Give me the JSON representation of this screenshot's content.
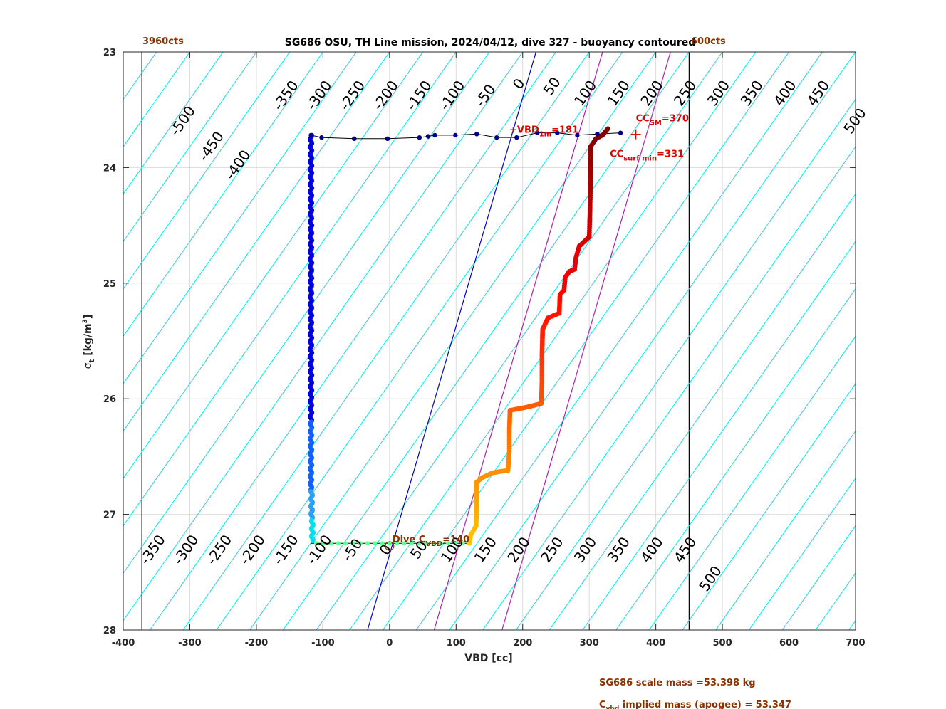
{
  "chart_data": {
    "type": "scatter",
    "title": "SG686 OSU, TH Line mission, 2024/04/12, dive 327 - buoyancy contoured",
    "xlabel": "VBD [cc]",
    "ylabel_main": "σ",
    "ylabel_sub": "t",
    "ylabel_unit": " [kg/m",
    "ylabel_exp": "3",
    "ylabel_close": "]",
    "xlim": [
      -400,
      700
    ],
    "ylim": [
      28,
      23
    ],
    "grid": true,
    "x_ticks": [
      -400,
      -300,
      -200,
      -100,
      0,
      100,
      200,
      300,
      400,
      500,
      600,
      700
    ],
    "y_ticks": [
      23,
      24,
      25,
      26,
      27,
      28
    ],
    "vbd_limits": {
      "min": -372,
      "max": 450,
      "min_label": "3960cts",
      "max_label": "600cts"
    },
    "contours": {
      "values": [
        -500,
        -450,
        -400,
        -350,
        -300,
        -250,
        -200,
        -150,
        -100,
        -50,
        0,
        50,
        100,
        150,
        200,
        250,
        300,
        350,
        400,
        450,
        500
      ],
      "slope_cc_per_sigma": -122,
      "top_labels": [
        {
          "label": "-500",
          "x": -305,
          "y": 23.62
        },
        {
          "label": "-450",
          "x": -262,
          "y": 23.84
        },
        {
          "label": "-400",
          "x": -222,
          "y": 24.0
        },
        {
          "label": "-350",
          "x": -150,
          "y": 23.4
        },
        {
          "label": "-300",
          "x": -100,
          "y": 23.4
        },
        {
          "label": "-250",
          "x": -50,
          "y": 23.4
        },
        {
          "label": "-200",
          "x": 0,
          "y": 23.4
        },
        {
          "label": "-150",
          "x": 50,
          "y": 23.4
        },
        {
          "label": "-100",
          "x": 100,
          "y": 23.4
        },
        {
          "label": "-50",
          "x": 150,
          "y": 23.4
        },
        {
          "label": "0",
          "x": 200,
          "y": 23.3
        },
        {
          "label": "50",
          "x": 250,
          "y": 23.32
        },
        {
          "label": "100",
          "x": 300,
          "y": 23.38
        },
        {
          "label": "150",
          "x": 350,
          "y": 23.38
        },
        {
          "label": "200",
          "x": 400,
          "y": 23.38
        },
        {
          "label": "250",
          "x": 450,
          "y": 23.38
        },
        {
          "label": "300",
          "x": 500,
          "y": 23.38
        },
        {
          "label": "350",
          "x": 550,
          "y": 23.38
        },
        {
          "label": "400",
          "x": 600,
          "y": 23.38
        },
        {
          "label": "450",
          "x": 650,
          "y": 23.38
        },
        {
          "label": "500",
          "x": 705,
          "y": 23.62
        }
      ],
      "bottom_labels": [
        {
          "label": "-350",
          "x": -350,
          "y": 27.33
        },
        {
          "label": "-300",
          "x": -300,
          "y": 27.33
        },
        {
          "label": "-250",
          "x": -250,
          "y": 27.33
        },
        {
          "label": "-200",
          "x": -200,
          "y": 27.33
        },
        {
          "label": "-150",
          "x": -150,
          "y": 27.33
        },
        {
          "label": "-100",
          "x": -100,
          "y": 27.33
        },
        {
          "label": "-50",
          "x": -50,
          "y": 27.33
        },
        {
          "label": "0",
          "x": 0,
          "y": 27.33
        },
        {
          "label": "50",
          "x": 50,
          "y": 27.33
        },
        {
          "label": "100",
          "x": 100,
          "y": 27.33
        },
        {
          "label": "150",
          "x": 150,
          "y": 27.33
        },
        {
          "label": "200",
          "x": 200,
          "y": 27.33
        },
        {
          "label": "250",
          "x": 250,
          "y": 27.33
        },
        {
          "label": "300",
          "x": 300,
          "y": 27.33
        },
        {
          "label": "350",
          "x": 350,
          "y": 27.33
        },
        {
          "label": "400",
          "x": 400,
          "y": 27.33
        },
        {
          "label": "450",
          "x": 450,
          "y": 27.33
        },
        {
          "label": "500",
          "x": 488,
          "y": 27.58
        }
      ]
    },
    "reference_lines": [
      {
        "name": "vbd-ref-blue",
        "color": "#0000c8",
        "x_at_23": 220,
        "x_at_28": -33
      },
      {
        "name": "mass-ref-magenta-1",
        "color": "#b41eb4",
        "x_at_23": 320,
        "x_at_28": 67
      },
      {
        "name": "mass-ref-magenta-2",
        "color": "#b41eb4",
        "x_at_23": 422,
        "x_at_28": 169
      }
    ],
    "descent_segments": [
      {
        "x": -118,
        "y0": 23.72,
        "y1": 26.2,
        "color": "#0000dc"
      },
      {
        "x": -118,
        "y0": 26.2,
        "y1": 26.8,
        "color": "#1460ff"
      },
      {
        "x": -117,
        "y0": 26.8,
        "y1": 27.05,
        "color": "#28a0ff"
      },
      {
        "x": -116,
        "y0": 27.05,
        "y1": 27.24,
        "color": "#00e0f0"
      }
    ],
    "apogee_points": {
      "y": 27.25,
      "x_from": -110,
      "x_to": 120,
      "step": 11,
      "color": "#60ff90"
    },
    "ascent_path": [
      [
        120,
        27.25
      ],
      [
        122,
        27.18
      ],
      [
        130,
        27.1
      ],
      [
        131,
        26.95
      ],
      [
        131,
        26.8
      ],
      [
        131,
        26.72
      ],
      [
        140,
        26.68
      ],
      [
        155,
        26.64
      ],
      [
        165,
        26.63
      ],
      [
        178,
        26.62
      ],
      [
        180,
        26.45
      ],
      [
        180,
        26.27
      ],
      [
        181,
        26.1
      ],
      [
        200,
        26.08
      ],
      [
        215,
        26.06
      ],
      [
        228,
        26.04
      ],
      [
        229,
        25.85
      ],
      [
        229,
        25.62
      ],
      [
        230,
        25.4
      ],
      [
        238,
        25.3
      ],
      [
        255,
        25.26
      ],
      [
        256,
        25.1
      ],
      [
        262,
        25.06
      ],
      [
        264,
        24.95
      ],
      [
        270,
        24.9
      ],
      [
        278,
        24.88
      ],
      [
        280,
        24.78
      ],
      [
        285,
        24.68
      ],
      [
        300,
        24.6
      ],
      [
        301,
        24.4
      ],
      [
        302,
        24.1
      ],
      [
        302,
        23.82
      ],
      [
        310,
        23.75
      ],
      [
        320,
        23.72
      ],
      [
        330,
        23.65
      ]
    ],
    "surface_points": [
      [
        -118,
        23.72
      ],
      [
        -102,
        23.74
      ],
      [
        -53,
        23.75
      ],
      [
        -3,
        23.75
      ],
      [
        45,
        23.74
      ],
      [
        58,
        23.73
      ],
      [
        68,
        23.72
      ],
      [
        99,
        23.72
      ],
      [
        131,
        23.71
      ],
      [
        161,
        23.74
      ],
      [
        191,
        23.74
      ],
      [
        222,
        23.7
      ],
      [
        252,
        23.7
      ],
      [
        282,
        23.72
      ],
      [
        312,
        23.71
      ],
      [
        347,
        23.7
      ]
    ],
    "annotations": {
      "vbd1m": {
        "prefix": "+VBD",
        "sub": "1m",
        "rest": "=181",
        "x": 180,
        "y": 23.7,
        "color": "#e00000"
      },
      "ccsm": {
        "prefix": "CC",
        "sub": "SM",
        "rest": "=370",
        "x": 370,
        "y": 23.7,
        "color": "#e00000"
      },
      "ccsurfmin": {
        "prefix": "CC",
        "sub": "surf min",
        "rest": "=331",
        "x": 331,
        "y": 23.7,
        "color": "#e00000"
      },
      "dive_c": {
        "prefix": "Dive C",
        "sub": "VBD",
        "rest": "=140",
        "x": 0,
        "y": 27.2,
        "color": "#8b3200"
      }
    },
    "footer_lines": {
      "scale_mass": "SG686 scale mass =53.398 kg",
      "implied_prefix": "C",
      "implied_sub": "vbd",
      "implied_rest": " implied mass (apogee) = 53.347"
    }
  }
}
